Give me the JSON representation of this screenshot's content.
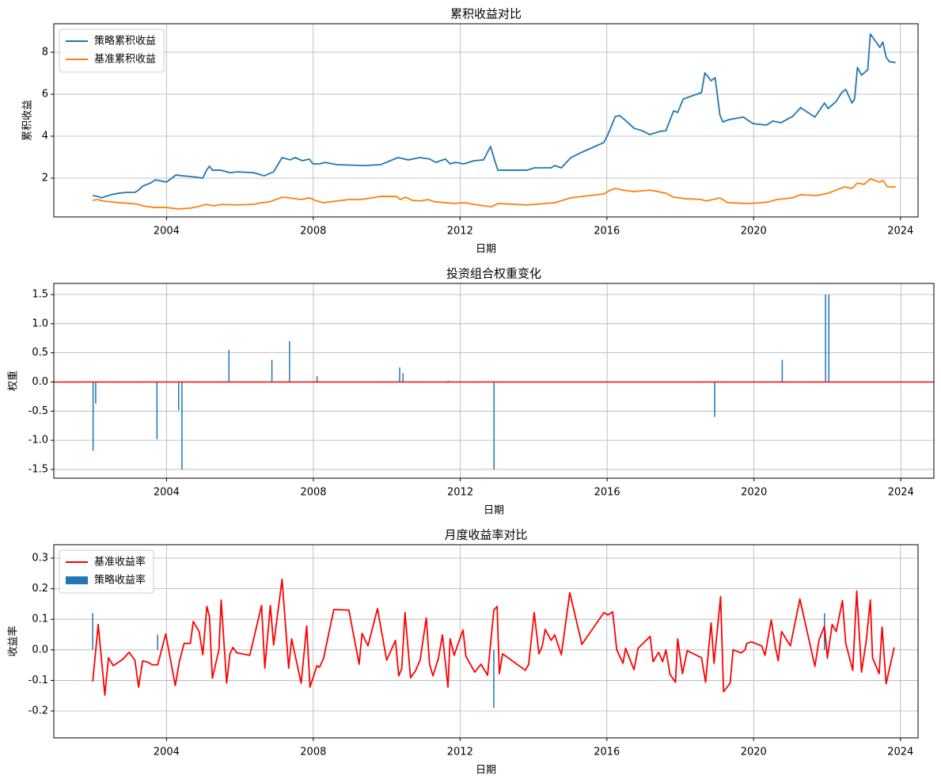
{
  "chart_data": [
    {
      "type": "line",
      "title": "累积收益对比",
      "xlabel": "日期",
      "ylabel": "累积收益",
      "xlim": [
        2000.93,
        2024.48
      ],
      "xticks": [
        2004,
        2008,
        2012,
        2016,
        2020,
        2024
      ],
      "ylim": [
        0.15,
        9.36
      ],
      "yticks": [
        2,
        4,
        6,
        8
      ],
      "grid": true,
      "legend": "upper left",
      "series": [
        {
          "name": "策略累积收益",
          "color": "#1f77b4",
          "x": [
            2001.99,
            2002.12,
            2002.23,
            2002.49,
            2002.7,
            2002.92,
            2003.14,
            2003.24,
            2003.35,
            2003.57,
            2003.7,
            2004.0,
            2004.26,
            2004.43,
            2004.65,
            2004.99,
            2005.08,
            2005.17,
            2005.25,
            2005.47,
            2005.73,
            2005.94,
            2006.38,
            2006.66,
            2006.92,
            2007.15,
            2007.37,
            2007.5,
            2007.71,
            2007.89,
            2007.99,
            2008.17,
            2008.32,
            2008.64,
            2009.4,
            2009.83,
            2010.31,
            2010.59,
            2010.91,
            2011.17,
            2011.34,
            2011.6,
            2011.73,
            2011.88,
            2012.1,
            2012.38,
            2012.64,
            2012.83,
            2012.94,
            2013.03,
            2013.83,
            2014.02,
            2014.48,
            2014.58,
            2014.76,
            2015.02,
            2015.34,
            2015.92,
            2016.03,
            2016.23,
            2016.35,
            2016.53,
            2016.74,
            2016.96,
            2017.17,
            2017.46,
            2017.61,
            2017.82,
            2017.93,
            2018.08,
            2018.58,
            2018.67,
            2018.84,
            2018.95,
            2019.08,
            2019.16,
            2019.33,
            2019.72,
            2019.98,
            2020.35,
            2020.52,
            2020.74,
            2021.06,
            2021.28,
            2021.67,
            2021.93,
            2022.03,
            2022.25,
            2022.4,
            2022.51,
            2022.68,
            2022.75,
            2022.83,
            2022.94,
            2023.11,
            2023.18,
            2023.44,
            2023.52,
            2023.61,
            2023.7,
            2023.87
          ],
          "values": [
            1.17,
            1.13,
            1.06,
            1.21,
            1.28,
            1.32,
            1.32,
            1.43,
            1.62,
            1.77,
            1.92,
            1.81,
            2.15,
            2.11,
            2.08,
            2.0,
            2.34,
            2.57,
            2.38,
            2.38,
            2.26,
            2.3,
            2.26,
            2.11,
            2.3,
            2.98,
            2.87,
            2.98,
            2.83,
            2.91,
            2.68,
            2.68,
            2.75,
            2.64,
            2.6,
            2.64,
            2.98,
            2.87,
            2.98,
            2.91,
            2.75,
            2.91,
            2.68,
            2.75,
            2.68,
            2.83,
            2.87,
            3.51,
            2.87,
            2.38,
            2.38,
            2.49,
            2.49,
            2.6,
            2.49,
            2.98,
            3.25,
            3.7,
            4.08,
            4.94,
            4.98,
            4.72,
            4.38,
            4.26,
            4.08,
            4.23,
            4.26,
            5.21,
            5.13,
            5.77,
            6.08,
            7.02,
            6.64,
            6.79,
            5.02,
            4.68,
            4.79,
            4.91,
            4.6,
            4.53,
            4.72,
            4.64,
            4.94,
            5.36,
            4.91,
            5.58,
            5.32,
            5.66,
            6.08,
            6.23,
            5.58,
            5.77,
            7.28,
            6.91,
            7.17,
            8.87,
            8.23,
            8.49,
            7.77,
            7.55,
            7.51
          ]
        },
        {
          "name": "基准累积收益",
          "color": "#ff7f0e",
          "x": [
            2001.99,
            2002.12,
            2002.27,
            2002.7,
            2003.03,
            2003.24,
            2003.35,
            2003.68,
            2004.0,
            2004.32,
            2004.65,
            2004.86,
            2005.08,
            2005.3,
            2005.51,
            2005.94,
            2006.38,
            2006.59,
            2006.81,
            2007.15,
            2007.35,
            2007.67,
            2007.89,
            2008.1,
            2008.28,
            2008.97,
            2009.29,
            2009.62,
            2009.83,
            2010.26,
            2010.37,
            2010.52,
            2010.7,
            2010.91,
            2011.13,
            2011.3,
            2011.6,
            2011.82,
            2012.1,
            2012.64,
            2012.86,
            2013.03,
            2013.83,
            2014.04,
            2014.58,
            2015.02,
            2015.92,
            2016.1,
            2016.23,
            2016.44,
            2016.74,
            2017.17,
            2017.39,
            2017.61,
            2017.82,
            2018.15,
            2018.58,
            2018.69,
            2018.9,
            2019.08,
            2019.29,
            2019.87,
            2020.2,
            2020.41,
            2020.63,
            2021.06,
            2021.28,
            2021.71,
            2022.03,
            2022.25,
            2022.47,
            2022.68,
            2022.83,
            2023.01,
            2023.18,
            2023.44,
            2023.52,
            2023.65,
            2023.87
          ],
          "values": [
            0.94,
            0.98,
            0.91,
            0.83,
            0.79,
            0.75,
            0.68,
            0.6,
            0.6,
            0.53,
            0.57,
            0.64,
            0.75,
            0.68,
            0.75,
            0.72,
            0.75,
            0.83,
            0.87,
            1.09,
            1.06,
            0.98,
            1.06,
            0.91,
            0.83,
            0.98,
            0.98,
            1.06,
            1.13,
            1.13,
            0.98,
            1.09,
            0.94,
            0.91,
            0.98,
            0.87,
            0.83,
            0.79,
            0.83,
            0.68,
            0.64,
            0.79,
            0.72,
            0.75,
            0.83,
            1.06,
            1.25,
            1.43,
            1.51,
            1.43,
            1.36,
            1.43,
            1.36,
            1.28,
            1.09,
            1.02,
            0.98,
            0.91,
            0.98,
            1.06,
            0.83,
            0.79,
            0.83,
            0.87,
            0.98,
            1.06,
            1.21,
            1.17,
            1.28,
            1.43,
            1.58,
            1.51,
            1.77,
            1.7,
            1.96,
            1.81,
            1.89,
            1.58,
            1.58
          ]
        }
      ]
    },
    {
      "type": "bar",
      "title": "投资组合权重变化",
      "xlabel": "日期",
      "ylabel": "权重",
      "color": "#1f77b4",
      "xlim": [
        2000.93,
        2024.9
      ],
      "xticks": [
        2004,
        2008,
        2012,
        2016,
        2020,
        2024
      ],
      "ylim": [
        -1.65,
        1.69
      ],
      "yticks": [
        1.5,
        {
          "value": 1,
          "label": "1.0"
        },
        0.5,
        {
          "value": 0,
          "label": "0.0"
        },
        -0.5,
        {
          "value": -1,
          "label": "-1.0"
        },
        -1.5
      ],
      "grid": true,
      "baseline": {
        "value": 0,
        "color": "#ff0000"
      },
      "x": [
        2002.0,
        2002.07,
        2003.74,
        2004.33,
        2004.42,
        2005.7,
        2006.87,
        2007.35,
        2008.1,
        2010.35,
        2010.44,
        2011.67,
        2012.92,
        2018.93,
        2020.77,
        2021.95,
        2022.04
      ],
      "values": [
        -1.18,
        -0.37,
        -0.98,
        -0.48,
        -1.5,
        0.55,
        0.38,
        0.7,
        0.1,
        0.25,
        0.15,
        0.02,
        -1.5,
        -0.6,
        0.38,
        1.5,
        1.5
      ]
    },
    {
      "type": "line",
      "title": "月度收益率对比",
      "xlabel": "日期",
      "ylabel": "收益率",
      "xlim": [
        2000.93,
        2024.48
      ],
      "xticks": [
        2004,
        2008,
        2012,
        2016,
        2020,
        2024
      ],
      "ylim": [
        -0.288,
        0.344
      ],
      "yticks": [
        -0.2,
        -0.1,
        {
          "value": 0,
          "label": "0.0"
        },
        0.1,
        0.2,
        0.3
      ],
      "grid": true,
      "legend": "upper left",
      "series": [
        {
          "name": "基准收益率",
          "type": "line",
          "color": "#ff0000",
          "x": [
            2001.99,
            2002.14,
            2002.32,
            2002.42,
            2002.55,
            2002.81,
            2002.98,
            2003.14,
            2003.24,
            2003.35,
            2003.5,
            2003.61,
            2003.76,
            2003.98,
            2004.24,
            2004.35,
            2004.48,
            2004.65,
            2004.73,
            2004.89,
            2004.99,
            2005.1,
            2005.17,
            2005.25,
            2005.43,
            2005.49,
            2005.64,
            2005.73,
            2005.81,
            2005.92,
            2006.27,
            2006.59,
            2006.68,
            2006.83,
            2006.92,
            2007.15,
            2007.33,
            2007.41,
            2007.67,
            2007.82,
            2007.91,
            2008.1,
            2008.17,
            2008.28,
            2008.56,
            2008.97,
            2009.25,
            2009.33,
            2009.49,
            2009.75,
            2010.0,
            2010.24,
            2010.33,
            2010.41,
            2010.5,
            2010.65,
            2010.78,
            2010.91,
            2011.08,
            2011.17,
            2011.26,
            2011.41,
            2011.52,
            2011.67,
            2011.73,
            2011.84,
            2011.95,
            2012.08,
            2012.16,
            2012.4,
            2012.57,
            2012.75,
            2012.92,
            2013.01,
            2013.07,
            2013.16,
            2013.78,
            2013.87,
            2014.02,
            2014.15,
            2014.24,
            2014.32,
            2014.48,
            2014.58,
            2014.76,
            2014.99,
            2015.32,
            2015.92,
            2016.03,
            2016.16,
            2016.27,
            2016.44,
            2016.51,
            2016.74,
            2016.85,
            2017.18,
            2017.26,
            2017.41,
            2017.52,
            2017.61,
            2017.72,
            2017.87,
            2017.93,
            2018.06,
            2018.19,
            2018.58,
            2018.69,
            2018.84,
            2018.92,
            2019.1,
            2019.18,
            2019.36,
            2019.44,
            2019.66,
            2019.77,
            2019.81,
            2019.94,
            2020.22,
            2020.31,
            2020.48,
            2020.59,
            2020.67,
            2020.76,
            2021.0,
            2021.26,
            2021.67,
            2021.78,
            2021.93,
            2022.01,
            2022.14,
            2022.25,
            2022.42,
            2022.51,
            2022.7,
            2022.81,
            2022.94,
            2023.07,
            2023.18,
            2023.24,
            2023.42,
            2023.5,
            2023.61,
            2023.83
          ],
          "values": [
            -0.104,
            0.083,
            -0.148,
            -0.026,
            -0.052,
            -0.031,
            -0.008,
            -0.034,
            -0.122,
            -0.036,
            -0.041,
            -0.049,
            -0.049,
            0.052,
            -0.117,
            -0.039,
            0.021,
            0.021,
            0.093,
            0.06,
            -0.016,
            0.142,
            0.109,
            -0.093,
            0,
            0.163,
            -0.109,
            -0.013,
            0.008,
            -0.01,
            -0.018,
            0.145,
            -0.06,
            0.145,
            0.016,
            0.231,
            -0.06,
            0.036,
            -0.109,
            0.078,
            -0.122,
            -0.052,
            -0.057,
            -0.028,
            0.132,
            0.13,
            -0.047,
            0.054,
            0.013,
            0.135,
            -0.034,
            0.031,
            -0.085,
            -0.062,
            0.122,
            -0.091,
            -0.07,
            -0.034,
            0.104,
            -0.047,
            -0.085,
            -0.028,
            0.049,
            -0.122,
            0.036,
            -0.018,
            0.021,
            0.065,
            -0.021,
            -0.073,
            -0.047,
            -0.083,
            0.13,
            0.142,
            -0.078,
            -0.013,
            -0.067,
            -0.047,
            0.122,
            -0.013,
            0.013,
            0.067,
            0.031,
            0.049,
            -0.016,
            0.187,
            0.018,
            0.122,
            0.114,
            0.124,
            0,
            -0.044,
            0.005,
            -0.065,
            0.005,
            0.044,
            -0.039,
            -0.008,
            -0.039,
            0,
            -0.08,
            -0.106,
            0.036,
            -0.078,
            -0.003,
            -0.026,
            -0.106,
            0.088,
            -0.044,
            0.174,
            -0.137,
            -0.109,
            0,
            -0.01,
            0,
            0.021,
            0.026,
            0.013,
            -0.018,
            0.098,
            0.01,
            -0.036,
            0.06,
            0.013,
            0.166,
            -0.054,
            0.031,
            0.078,
            -0.026,
            0.083,
            0.06,
            0.161,
            0.021,
            -0.067,
            0.192,
            -0.073,
            0.031,
            0.163,
            -0.026,
            -0.078,
            0.075,
            -0.111,
            0.008
          ]
        },
        {
          "name": "策略收益率",
          "type": "bar",
          "color": "#1f77b4",
          "x": [
            2001.99,
            2003.76,
            2012.92,
            2021.93,
            2022.01
          ],
          "values": [
            0.12,
            0.05,
            -0.19,
            0.12,
            -0.03
          ]
        }
      ]
    }
  ]
}
